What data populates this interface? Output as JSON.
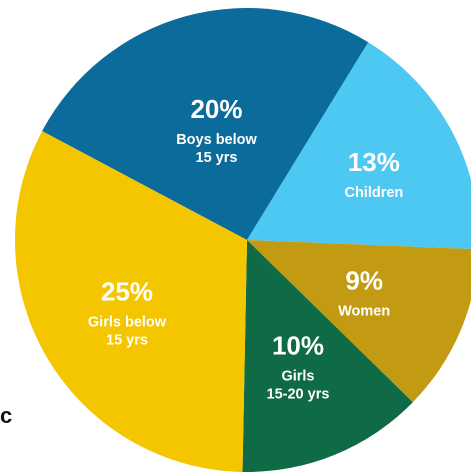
{
  "edge_text": "c",
  "chart_data": {
    "type": "pie",
    "title": "",
    "slices": [
      {
        "percent_label": "20%",
        "value": 20,
        "lines": [
          "Boys below",
          "15 yrs"
        ],
        "color": "#0B6B9A"
      },
      {
        "percent_label": "13%",
        "value": 13,
        "lines": [
          "Children"
        ],
        "color": "#4DC8F3"
      },
      {
        "percent_label": "9%",
        "value": 9,
        "lines": [
          "Women"
        ],
        "color": "#C39B12"
      },
      {
        "percent_label": "10%",
        "value": 10,
        "lines": [
          "Girls",
          "15-20 yrs"
        ],
        "color": "#0F6A46"
      },
      {
        "percent_label": "25%",
        "value": 25,
        "lines": [
          "Girls below",
          "15 yrs"
        ],
        "color": "#F4C600"
      }
    ]
  }
}
